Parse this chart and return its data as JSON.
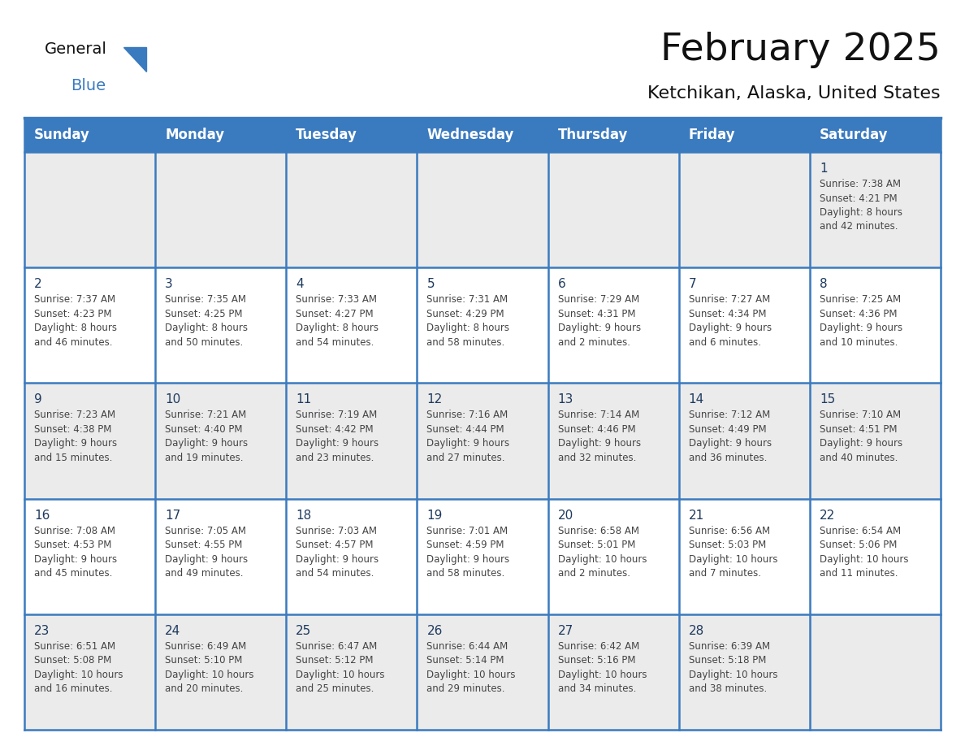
{
  "title": "February 2025",
  "subtitle": "Ketchikan, Alaska, United States",
  "days_of_week": [
    "Sunday",
    "Monday",
    "Tuesday",
    "Wednesday",
    "Thursday",
    "Friday",
    "Saturday"
  ],
  "header_bg": "#3a7abf",
  "header_text": "#ffffff",
  "cell_bg_odd": "#ebebeb",
  "cell_bg_even": "#ffffff",
  "border_color": "#3a7abf",
  "day_number_color": "#1e3a5f",
  "info_text_color": "#444444",
  "title_color": "#111111",
  "subtitle_color": "#111111",
  "logo_general_color": "#111111",
  "logo_blue_color": "#3a7abf",
  "logo_triangle_color": "#3a7abf",
  "calendar_data": [
    [
      null,
      null,
      null,
      null,
      null,
      null,
      {
        "day": 1,
        "sunrise": "7:38 AM",
        "sunset": "4:21 PM",
        "daylight": "8 hours and 42 minutes."
      }
    ],
    [
      {
        "day": 2,
        "sunrise": "7:37 AM",
        "sunset": "4:23 PM",
        "daylight": "8 hours and 46 minutes."
      },
      {
        "day": 3,
        "sunrise": "7:35 AM",
        "sunset": "4:25 PM",
        "daylight": "8 hours and 50 minutes."
      },
      {
        "day": 4,
        "sunrise": "7:33 AM",
        "sunset": "4:27 PM",
        "daylight": "8 hours and 54 minutes."
      },
      {
        "day": 5,
        "sunrise": "7:31 AM",
        "sunset": "4:29 PM",
        "daylight": "8 hours and 58 minutes."
      },
      {
        "day": 6,
        "sunrise": "7:29 AM",
        "sunset": "4:31 PM",
        "daylight": "9 hours and 2 minutes."
      },
      {
        "day": 7,
        "sunrise": "7:27 AM",
        "sunset": "4:34 PM",
        "daylight": "9 hours and 6 minutes."
      },
      {
        "day": 8,
        "sunrise": "7:25 AM",
        "sunset": "4:36 PM",
        "daylight": "9 hours and 10 minutes."
      }
    ],
    [
      {
        "day": 9,
        "sunrise": "7:23 AM",
        "sunset": "4:38 PM",
        "daylight": "9 hours and 15 minutes."
      },
      {
        "day": 10,
        "sunrise": "7:21 AM",
        "sunset": "4:40 PM",
        "daylight": "9 hours and 19 minutes."
      },
      {
        "day": 11,
        "sunrise": "7:19 AM",
        "sunset": "4:42 PM",
        "daylight": "9 hours and 23 minutes."
      },
      {
        "day": 12,
        "sunrise": "7:16 AM",
        "sunset": "4:44 PM",
        "daylight": "9 hours and 27 minutes."
      },
      {
        "day": 13,
        "sunrise": "7:14 AM",
        "sunset": "4:46 PM",
        "daylight": "9 hours and 32 minutes."
      },
      {
        "day": 14,
        "sunrise": "7:12 AM",
        "sunset": "4:49 PM",
        "daylight": "9 hours and 36 minutes."
      },
      {
        "day": 15,
        "sunrise": "7:10 AM",
        "sunset": "4:51 PM",
        "daylight": "9 hours and 40 minutes."
      }
    ],
    [
      {
        "day": 16,
        "sunrise": "7:08 AM",
        "sunset": "4:53 PM",
        "daylight": "9 hours and 45 minutes."
      },
      {
        "day": 17,
        "sunrise": "7:05 AM",
        "sunset": "4:55 PM",
        "daylight": "9 hours and 49 minutes."
      },
      {
        "day": 18,
        "sunrise": "7:03 AM",
        "sunset": "4:57 PM",
        "daylight": "9 hours and 54 minutes."
      },
      {
        "day": 19,
        "sunrise": "7:01 AM",
        "sunset": "4:59 PM",
        "daylight": "9 hours and 58 minutes."
      },
      {
        "day": 20,
        "sunrise": "6:58 AM",
        "sunset": "5:01 PM",
        "daylight": "10 hours and 2 minutes."
      },
      {
        "day": 21,
        "sunrise": "6:56 AM",
        "sunset": "5:03 PM",
        "daylight": "10 hours and 7 minutes."
      },
      {
        "day": 22,
        "sunrise": "6:54 AM",
        "sunset": "5:06 PM",
        "daylight": "10 hours and 11 minutes."
      }
    ],
    [
      {
        "day": 23,
        "sunrise": "6:51 AM",
        "sunset": "5:08 PM",
        "daylight": "10 hours and 16 minutes."
      },
      {
        "day": 24,
        "sunrise": "6:49 AM",
        "sunset": "5:10 PM",
        "daylight": "10 hours and 20 minutes."
      },
      {
        "day": 25,
        "sunrise": "6:47 AM",
        "sunset": "5:12 PM",
        "daylight": "10 hours and 25 minutes."
      },
      {
        "day": 26,
        "sunrise": "6:44 AM",
        "sunset": "5:14 PM",
        "daylight": "10 hours and 29 minutes."
      },
      {
        "day": 27,
        "sunrise": "6:42 AM",
        "sunset": "5:16 PM",
        "daylight": "10 hours and 34 minutes."
      },
      {
        "day": 28,
        "sunrise": "6:39 AM",
        "sunset": "5:18 PM",
        "daylight": "10 hours and 38 minutes."
      },
      null
    ]
  ],
  "fig_width": 11.88,
  "fig_height": 9.18
}
